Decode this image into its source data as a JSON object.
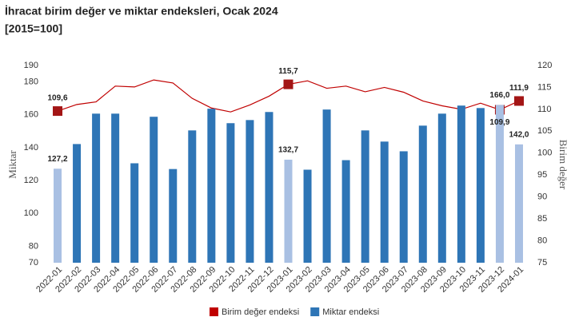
{
  "chart_data": {
    "type": "combo",
    "title": "İhracat birim değer ve miktar endeksleri, Ocak 2024",
    "subtitle": "[2015=100]",
    "ylabel": "Miktar",
    "y2label": "Birim değer",
    "categories": [
      "2022-01",
      "2022-02",
      "2022-03",
      "2022-04",
      "2022-05",
      "2022-06",
      "2022-07",
      "2022-08",
      "2022-09",
      "2022-10",
      "2022-11",
      "2022-12",
      "2023-01",
      "2023-02",
      "2023-03",
      "2023-04",
      "2023-05",
      "2023-06",
      "2023-07",
      "2023-08",
      "2023-09",
      "2023-10",
      "2023-11",
      "2023-12",
      "2024-01"
    ],
    "ylim": [
      70,
      190
    ],
    "yticks": [
      70,
      80,
      100,
      120,
      140,
      160,
      180,
      190
    ],
    "y2lim": [
      75,
      120
    ],
    "y2ticks": [
      75,
      80,
      85,
      90,
      95,
      100,
      105,
      110,
      115,
      120
    ],
    "grid": false,
    "legend": "bottom",
    "series": [
      {
        "name": "Birim değer endeksi",
        "type": "line",
        "axis": "y2",
        "color": "#c00000",
        "values": [
          109.6,
          111.1,
          111.7,
          115.3,
          115.1,
          116.7,
          116.0,
          112.5,
          110.3,
          109.4,
          111.0,
          113.0,
          115.7,
          116.5,
          114.8,
          115.3,
          114.0,
          115.0,
          113.9,
          111.9,
          110.8,
          110.0,
          111.4,
          109.9,
          111.9
        ],
        "value_labels": [
          "109,6",
          null,
          null,
          null,
          null,
          null,
          null,
          null,
          null,
          null,
          null,
          null,
          "115,7",
          null,
          null,
          null,
          null,
          null,
          null,
          null,
          null,
          null,
          null,
          "109,9",
          "111,9"
        ]
      },
      {
        "name": "Miktar endeksi",
        "type": "bar",
        "axis": "y",
        "color": "#2e75b6",
        "values": [
          127.2,
          142.2,
          160.7,
          160.7,
          130.5,
          158.8,
          127.0,
          150.5,
          163.7,
          154.9,
          156.8,
          161.7,
          132.7,
          126.6,
          163.2,
          132.4,
          150.5,
          143.7,
          137.8,
          153.4,
          160.7,
          165.6,
          164.1,
          166.0,
          142.0
        ],
        "value_labels": [
          "127,2",
          null,
          null,
          null,
          null,
          null,
          null,
          null,
          null,
          null,
          null,
          null,
          "132,7",
          null,
          null,
          null,
          null,
          null,
          null,
          null,
          null,
          null,
          null,
          "166,0",
          "142,0"
        ],
        "colors": [
          "#a9c0e3",
          "#2e75b6",
          "#2e75b6",
          "#2e75b6",
          "#2e75b6",
          "#2e75b6",
          "#2e75b6",
          "#2e75b6",
          "#2e75b6",
          "#2e75b6",
          "#2e75b6",
          "#2e75b6",
          "#a9c0e3",
          "#2e75b6",
          "#2e75b6",
          "#2e75b6",
          "#2e75b6",
          "#2e75b6",
          "#2e75b6",
          "#2e75b6",
          "#2e75b6",
          "#2e75b6",
          "#2e75b6",
          "#a9c0e3",
          "#a9c0e3"
        ]
      }
    ]
  }
}
